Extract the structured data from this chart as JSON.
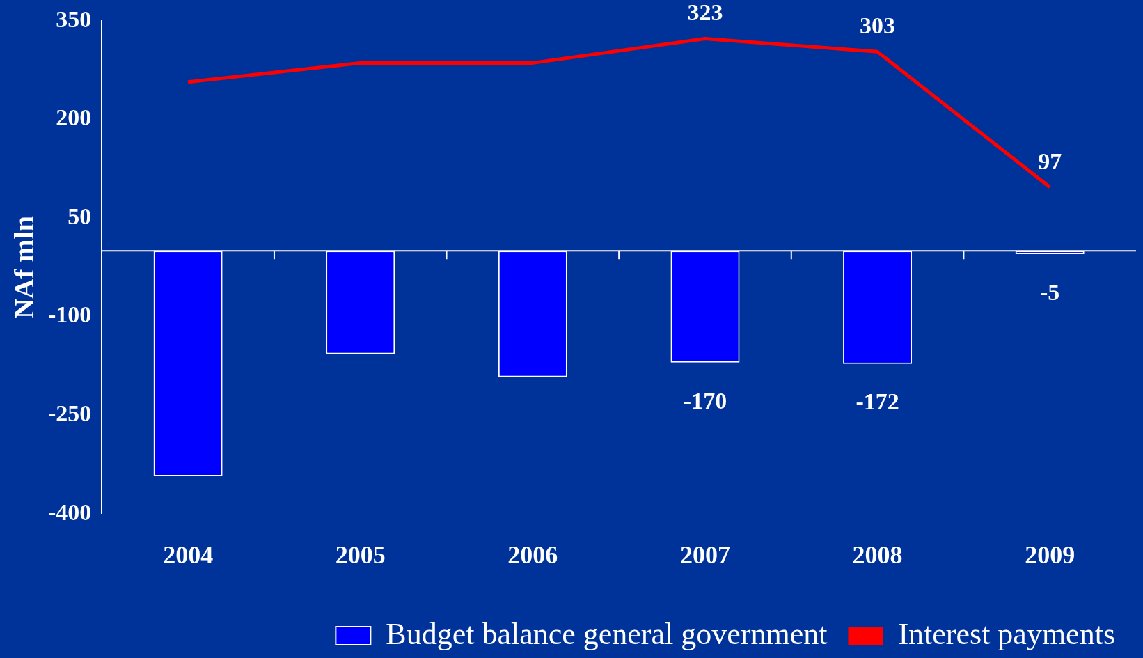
{
  "chart_data": {
    "type": "bar",
    "ylabel": "NAf mln",
    "categories": [
      "2004",
      "2005",
      "2006",
      "2007",
      "2008",
      "2009"
    ],
    "series": [
      {
        "name": "Budget balance general government",
        "color": "#0000ff",
        "values": [
          -343,
          -157,
          -192,
          -170,
          -172,
          -5
        ],
        "value_labels": [
          null,
          null,
          null,
          "-170",
          "-172",
          "-5"
        ]
      },
      {
        "name": "Interest payments",
        "type": "line",
        "color": "#ff0000",
        "values": [
          257,
          286,
          286,
          323,
          303,
          97
        ],
        "value_labels": [
          null,
          null,
          null,
          "323",
          "303",
          "97"
        ]
      }
    ],
    "ylim": [
      -400,
      350
    ],
    "yticks": [
      350,
      200,
      50,
      -100,
      -250,
      -400
    ],
    "grid": false,
    "legend": "bottom",
    "marker": "none",
    "line_style": "solid"
  }
}
